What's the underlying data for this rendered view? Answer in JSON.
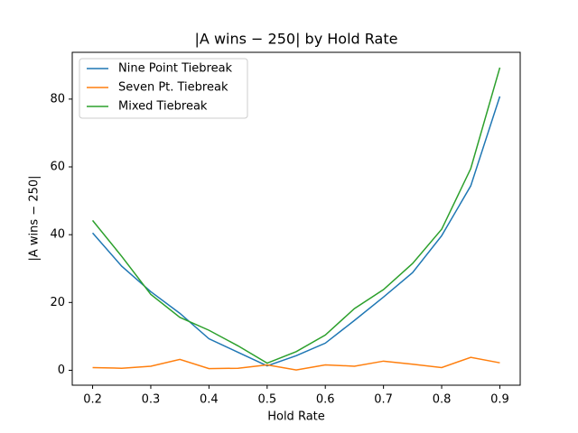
{
  "chart_data": {
    "type": "line",
    "title": "|A wins − 250| by Hold Rate",
    "xlabel": "Hold Rate",
    "ylabel": "|A wins − 250|",
    "x": [
      0.2,
      0.25,
      0.3,
      0.35,
      0.4,
      0.45,
      0.5,
      0.55,
      0.6,
      0.65,
      0.7,
      0.75,
      0.8,
      0.85,
      0.9
    ],
    "series": [
      {
        "name": "Nine Point Tiebreak",
        "color": "#1f77b4",
        "values": [
          40.5,
          30.7,
          23.2,
          16.8,
          9.3,
          5.3,
          1.3,
          4.3,
          8.0,
          14.7,
          21.6,
          28.8,
          39.7,
          54.4,
          80.8
        ]
      },
      {
        "name": "Seven Pt. Tiebreak",
        "color": "#ff7f0e",
        "values": [
          0.8,
          0.6,
          1.2,
          3.2,
          0.5,
          0.6,
          1.6,
          0.1,
          1.6,
          1.2,
          2.7,
          1.8,
          0.8,
          3.8,
          2.2
        ]
      },
      {
        "name": "Mixed Tiebreak",
        "color": "#2ca02c",
        "values": [
          44.2,
          33.6,
          22.4,
          15.6,
          11.8,
          7.2,
          2.1,
          5.5,
          10.4,
          18.2,
          23.8,
          31.5,
          41.6,
          59.5,
          89.3
        ]
      }
    ],
    "xlim": [
      0.165,
      0.935
    ],
    "ylim": [
      -4.4,
      93.8
    ],
    "xticks": [
      0.2,
      0.3,
      0.4,
      0.5,
      0.6,
      0.7,
      0.8,
      0.9
    ],
    "yticks": [
      0,
      20,
      40,
      60,
      80
    ],
    "grid": false,
    "legend": "upper-left"
  }
}
